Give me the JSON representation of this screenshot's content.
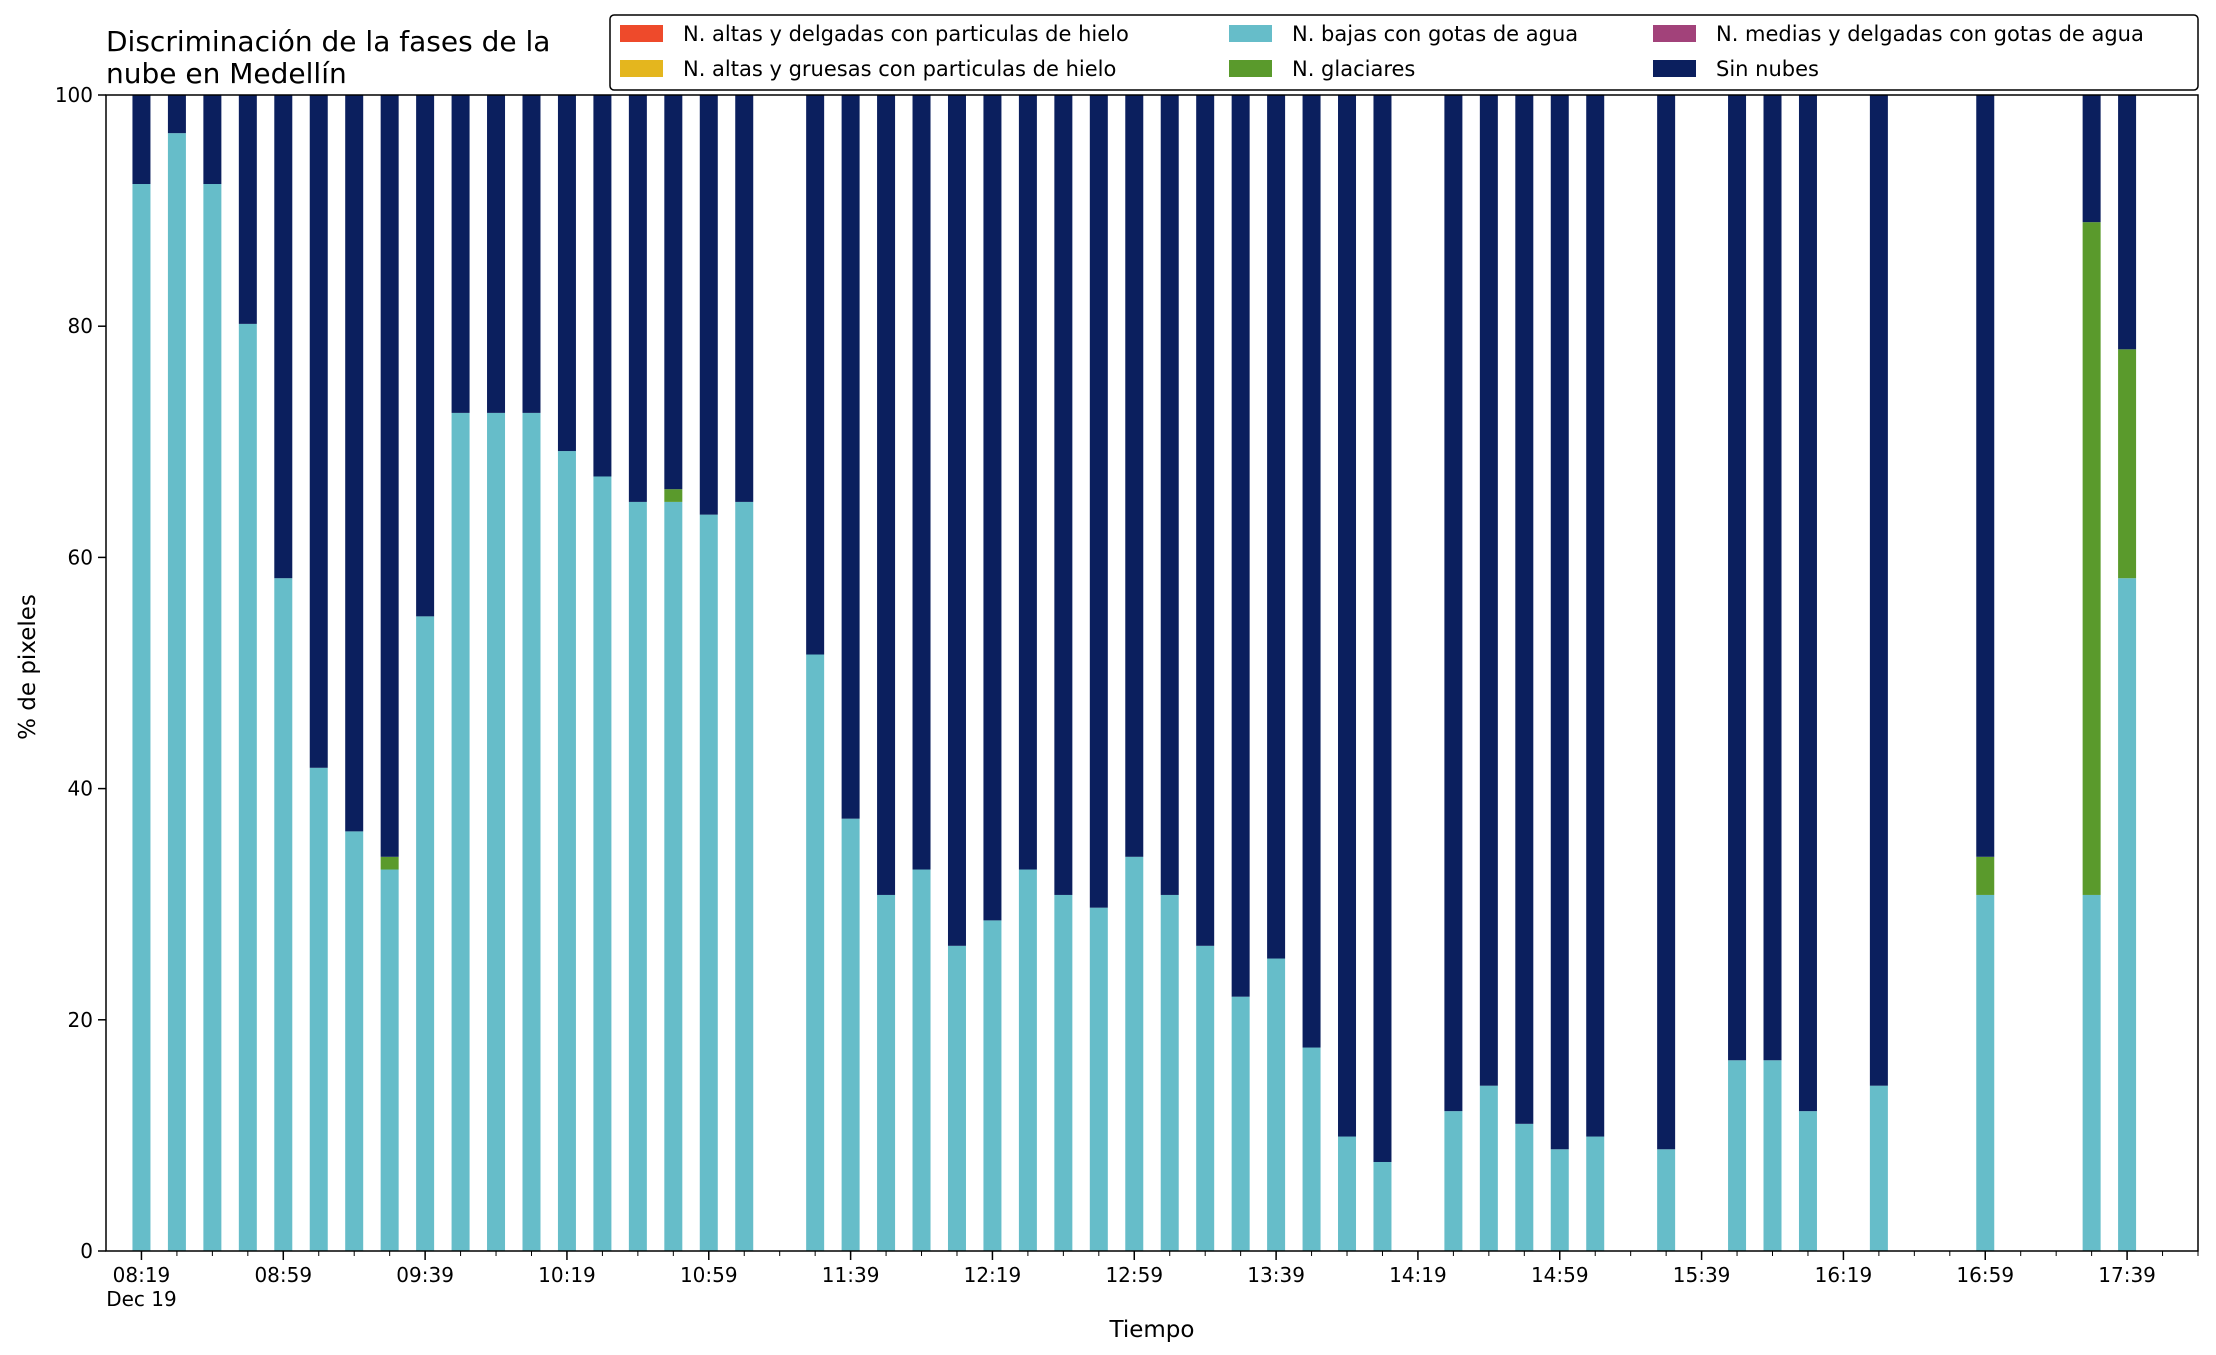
{
  "chart_data": {
    "type": "bar",
    "stacked": true,
    "title_lines": [
      "Discriminación de la fases de la",
      "nube en Medellín"
    ],
    "xlabel": "Tiempo",
    "ylabel": "% de pixeles",
    "ylim": [
      0,
      100
    ],
    "yticks": [
      "0",
      "20",
      "40",
      "60",
      "80",
      "100"
    ],
    "xlim_minutes": [
      -10,
      580
    ],
    "xtick_labels": [
      "08:19",
      "08:59",
      "09:39",
      "10:19",
      "10:59",
      "11:39",
      "12:19",
      "12:59",
      "13:39",
      "14:19",
      "14:59",
      "15:39",
      "16:19",
      "16:59",
      "17:39"
    ],
    "x_date_label": "Dec 19",
    "minor_tick_step_minutes": 10,
    "legend_placement": "top-right",
    "grid": false,
    "series": [
      {
        "name": "N. altas y delgadas con particulas de hielo",
        "color": "#ee4a2b"
      },
      {
        "name": "N. altas y gruesas con particulas de hielo",
        "color": "#e4b61e"
      },
      {
        "name": "N. bajas con gotas de agua",
        "color": "#66bdc9"
      },
      {
        "name": "N. glaciares",
        "color": "#5a9a2c"
      },
      {
        "name": "N. medias y delgadas con gotas de agua",
        "color": "#a2427a"
      },
      {
        "name": "Sin nubes",
        "color": "#0b1f5e"
      }
    ],
    "bars": [
      {
        "time": "08:19",
        "agua": 92.3,
        "glaciares": 0,
        "sin_nubes": 7.7
      },
      {
        "time": "08:29",
        "agua": 96.7,
        "glaciares": 0,
        "sin_nubes": 3.3
      },
      {
        "time": "08:39",
        "agua": 92.3,
        "glaciares": 0,
        "sin_nubes": 7.7
      },
      {
        "time": "08:49",
        "agua": 80.2,
        "glaciares": 0,
        "sin_nubes": 19.8
      },
      {
        "time": "08:59",
        "agua": 58.2,
        "glaciares": 0,
        "sin_nubes": 41.8
      },
      {
        "time": "09:09",
        "agua": 41.8,
        "glaciares": 0,
        "sin_nubes": 58.2
      },
      {
        "time": "09:19",
        "agua": 36.3,
        "glaciares": 0,
        "sin_nubes": 63.7
      },
      {
        "time": "09:29",
        "agua": 33.0,
        "glaciares": 1.1,
        "sin_nubes": 65.9
      },
      {
        "time": "09:39",
        "agua": 54.9,
        "glaciares": 0,
        "sin_nubes": 45.1
      },
      {
        "time": "09:49",
        "agua": 72.5,
        "glaciares": 0,
        "sin_nubes": 27.5
      },
      {
        "time": "09:59",
        "agua": 72.5,
        "glaciares": 0,
        "sin_nubes": 27.5
      },
      {
        "time": "10:09",
        "agua": 72.5,
        "glaciares": 0,
        "sin_nubes": 27.5
      },
      {
        "time": "10:19",
        "agua": 69.2,
        "glaciares": 0,
        "sin_nubes": 30.8
      },
      {
        "time": "10:29",
        "agua": 67.0,
        "glaciares": 0,
        "sin_nubes": 33.0
      },
      {
        "time": "10:39",
        "agua": 64.8,
        "glaciares": 0,
        "sin_nubes": 35.2
      },
      {
        "time": "10:49",
        "agua": 64.8,
        "glaciares": 1.1,
        "sin_nubes": 34.1
      },
      {
        "time": "10:59",
        "agua": 63.7,
        "glaciares": 0,
        "sin_nubes": 36.3
      },
      {
        "time": "11:09",
        "agua": 64.8,
        "glaciares": 0,
        "sin_nubes": 35.2
      },
      {
        "time": "11:29",
        "agua": 51.6,
        "glaciares": 0,
        "sin_nubes": 48.4
      },
      {
        "time": "11:39",
        "agua": 37.4,
        "glaciares": 0,
        "sin_nubes": 62.6
      },
      {
        "time": "11:49",
        "agua": 30.8,
        "glaciares": 0,
        "sin_nubes": 69.2
      },
      {
        "time": "11:59",
        "agua": 33.0,
        "glaciares": 0,
        "sin_nubes": 67.0
      },
      {
        "time": "12:09",
        "agua": 26.4,
        "glaciares": 0,
        "sin_nubes": 73.6
      },
      {
        "time": "12:19",
        "agua": 28.6,
        "glaciares": 0,
        "sin_nubes": 71.4
      },
      {
        "time": "12:29",
        "agua": 33.0,
        "glaciares": 0,
        "sin_nubes": 67.0
      },
      {
        "time": "12:39",
        "agua": 30.8,
        "glaciares": 0,
        "sin_nubes": 69.2
      },
      {
        "time": "12:49",
        "agua": 29.7,
        "glaciares": 0,
        "sin_nubes": 70.3
      },
      {
        "time": "12:59",
        "agua": 34.1,
        "glaciares": 0,
        "sin_nubes": 65.9
      },
      {
        "time": "13:09",
        "agua": 30.8,
        "glaciares": 0,
        "sin_nubes": 69.2
      },
      {
        "time": "13:19",
        "agua": 26.4,
        "glaciares": 0,
        "sin_nubes": 73.6
      },
      {
        "time": "13:29",
        "agua": 22.0,
        "glaciares": 0,
        "sin_nubes": 78.0
      },
      {
        "time": "13:39",
        "agua": 25.3,
        "glaciares": 0,
        "sin_nubes": 74.7
      },
      {
        "time": "13:49",
        "agua": 17.6,
        "glaciares": 0,
        "sin_nubes": 82.4
      },
      {
        "time": "13:59",
        "agua": 9.9,
        "glaciares": 0,
        "sin_nubes": 90.1
      },
      {
        "time": "14:09",
        "agua": 7.7,
        "glaciares": 0,
        "sin_nubes": 92.3
      },
      {
        "time": "14:29",
        "agua": 12.1,
        "glaciares": 0,
        "sin_nubes": 87.9
      },
      {
        "time": "14:39",
        "agua": 14.3,
        "glaciares": 0,
        "sin_nubes": 85.7
      },
      {
        "time": "14:49",
        "agua": 11.0,
        "glaciares": 0,
        "sin_nubes": 89.0
      },
      {
        "time": "14:59",
        "agua": 8.8,
        "glaciares": 0,
        "sin_nubes": 91.2
      },
      {
        "time": "15:09",
        "agua": 9.9,
        "glaciares": 0,
        "sin_nubes": 90.1
      },
      {
        "time": "15:29",
        "agua": 8.8,
        "glaciares": 0,
        "sin_nubes": 91.2
      },
      {
        "time": "15:49",
        "agua": 16.5,
        "glaciares": 0,
        "sin_nubes": 83.5
      },
      {
        "time": "15:59",
        "agua": 16.5,
        "glaciares": 0,
        "sin_nubes": 83.5
      },
      {
        "time": "16:09",
        "agua": 12.1,
        "glaciares": 0,
        "sin_nubes": 87.9
      },
      {
        "time": "16:29",
        "agua": 14.3,
        "glaciares": 0,
        "sin_nubes": 85.7
      },
      {
        "time": "16:59",
        "agua": 30.8,
        "glaciares": 3.3,
        "sin_nubes": 65.9
      },
      {
        "time": "17:29",
        "agua": 30.8,
        "glaciares": 58.2,
        "sin_nubes": 11.0
      },
      {
        "time": "17:39",
        "agua": 58.2,
        "glaciares": 19.8,
        "sin_nubes": 22.0
      }
    ]
  }
}
